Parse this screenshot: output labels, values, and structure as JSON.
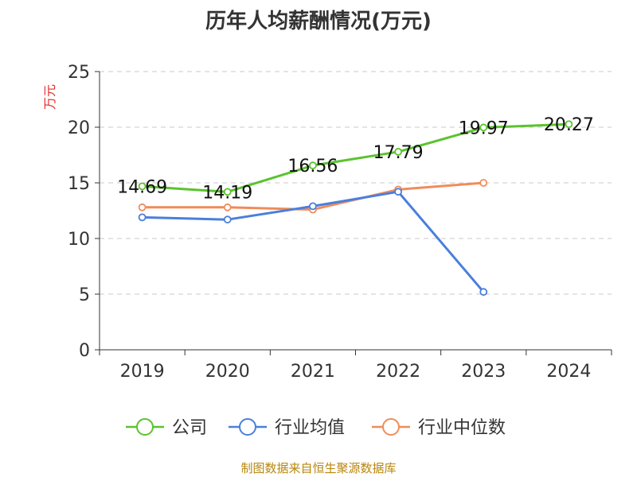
{
  "chart_data": {
    "type": "line",
    "title": "历年人均薪酬情况(万元)",
    "ylabel": "万元",
    "xlabel": "",
    "ylim": [
      0,
      25
    ],
    "yticks": [
      0,
      5,
      10,
      15,
      20,
      25
    ],
    "categories": [
      "2019",
      "2020",
      "2021",
      "2022",
      "2023",
      "2024"
    ],
    "grid": true,
    "legend_position": "bottom",
    "series": [
      {
        "name": "公司",
        "color": "#5ac32e",
        "values": [
          14.69,
          14.19,
          16.56,
          17.79,
          19.97,
          20.27
        ],
        "labels": [
          "14.69",
          "14.19",
          "16.56",
          "17.79",
          "19.97",
          "20.27"
        ]
      },
      {
        "name": "行业均值",
        "color": "#4a7fdc",
        "values": [
          11.9,
          11.7,
          12.9,
          14.2,
          5.2,
          null
        ]
      },
      {
        "name": "行业中位数",
        "color": "#f08c5a",
        "values": [
          12.8,
          12.8,
          12.6,
          14.4,
          15.0,
          null
        ]
      }
    ]
  },
  "footer": {
    "source": "制图数据来自恒生聚源数据库"
  }
}
